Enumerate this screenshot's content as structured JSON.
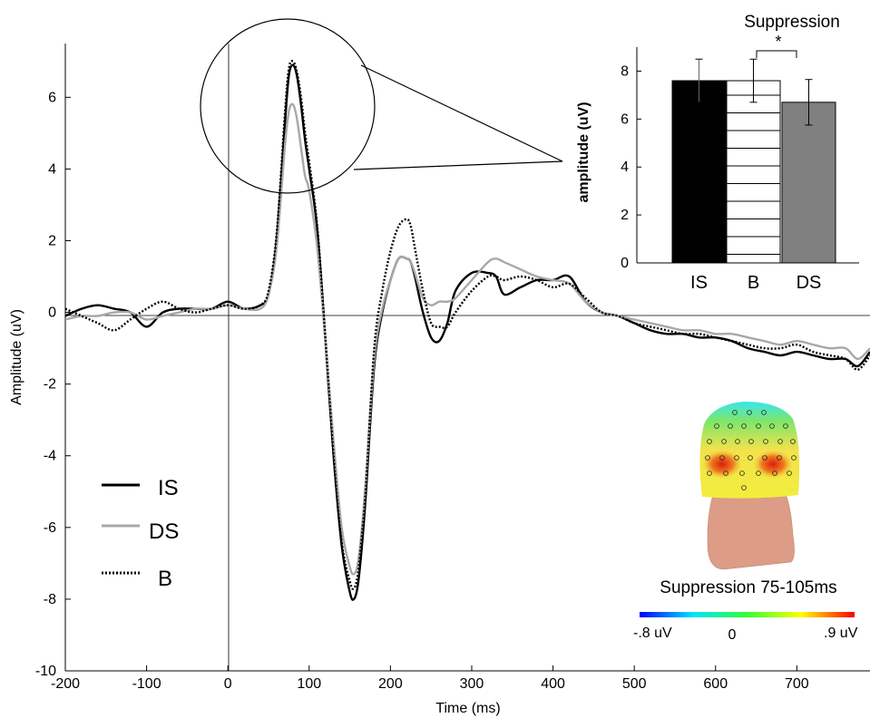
{
  "chart_data": [
    {
      "type": "line",
      "xlabel": "Time (ms)",
      "ylabel": "Amplitude (uV)",
      "xlim": [
        -200,
        790
      ],
      "ylim": [
        -10,
        7.5
      ],
      "xticks": [
        -200,
        -100,
        0,
        100,
        200,
        300,
        400,
        500,
        600,
        700
      ],
      "yticks": [
        -10,
        -8,
        -6,
        -4,
        -2,
        0,
        2,
        4,
        6
      ],
      "x_tick_labels": [
        "-200",
        "-100",
        "0",
        "100",
        "200",
        "300",
        "400",
        "500",
        "600",
        "700"
      ],
      "y_tick_labels": [
        "-10",
        "-8",
        "-6",
        "-4",
        "-2",
        "0",
        "2",
        "4",
        "6"
      ],
      "grid": false,
      "legend_position": "bottom-left",
      "x": [
        -200,
        -180,
        -160,
        -140,
        -120,
        -100,
        -80,
        -60,
        -40,
        -20,
        0,
        20,
        40,
        50,
        60,
        70,
        75,
        80,
        85,
        90,
        95,
        100,
        110,
        120,
        130,
        140,
        150,
        155,
        160,
        165,
        170,
        180,
        190,
        200,
        210,
        220,
        225,
        230,
        240,
        250,
        260,
        270,
        280,
        300,
        320,
        330,
        340,
        360,
        380,
        400,
        420,
        440,
        460,
        480,
        500,
        520,
        540,
        560,
        580,
        600,
        620,
        640,
        660,
        680,
        700,
        720,
        740,
        760,
        775,
        790
      ],
      "series": [
        {
          "name": "IS",
          "color": "#000000",
          "style": "solid",
          "values": [
            -0.1,
            0.1,
            0.2,
            0.1,
            0.0,
            -0.4,
            0.0,
            0.1,
            0.1,
            0.1,
            0.3,
            0.1,
            0.2,
            0.5,
            2.0,
            5.2,
            6.6,
            6.9,
            6.6,
            5.8,
            4.8,
            4.0,
            2.3,
            -0.8,
            -4.0,
            -6.5,
            -7.8,
            -8.0,
            -7.6,
            -6.5,
            -5.0,
            -1.5,
            0.0,
            0.9,
            1.5,
            1.5,
            1.4,
            1.0,
            0.0,
            -0.7,
            -0.8,
            -0.3,
            0.6,
            1.1,
            1.1,
            1.0,
            0.5,
            0.7,
            0.9,
            0.9,
            1.0,
            0.3,
            0.0,
            -0.1,
            -0.3,
            -0.5,
            -0.6,
            -0.6,
            -0.7,
            -0.7,
            -0.8,
            -1.0,
            -1.1,
            -1.2,
            -1.1,
            -1.2,
            -1.3,
            -1.3,
            -1.5,
            -1.1
          ]
        },
        {
          "name": "DS",
          "color": "#a8a8a8",
          "style": "solid",
          "values": [
            -0.2,
            -0.1,
            -0.1,
            0.0,
            0.0,
            -0.2,
            -0.1,
            0.0,
            0.1,
            0.1,
            0.2,
            0.1,
            0.1,
            0.5,
            1.8,
            4.6,
            5.6,
            5.8,
            5.4,
            4.6,
            3.8,
            3.4,
            1.8,
            -0.8,
            -3.6,
            -6.0,
            -7.1,
            -7.3,
            -7.0,
            -6.0,
            -4.6,
            -1.3,
            0.1,
            0.9,
            1.5,
            1.5,
            1.4,
            1.1,
            0.4,
            0.2,
            0.3,
            0.3,
            0.4,
            0.9,
            1.4,
            1.5,
            1.4,
            1.2,
            1.0,
            0.9,
            0.8,
            0.3,
            0.0,
            -0.1,
            -0.2,
            -0.3,
            -0.4,
            -0.5,
            -0.5,
            -0.6,
            -0.6,
            -0.7,
            -0.8,
            -0.9,
            -0.8,
            -0.9,
            -1.0,
            -1.0,
            -1.3,
            -1.0
          ]
        },
        {
          "name": "B",
          "color": "#000000",
          "style": "dotted",
          "values": [
            0.1,
            -0.1,
            -0.3,
            -0.5,
            -0.2,
            0.1,
            0.3,
            0.1,
            0.0,
            0.1,
            0.2,
            0.1,
            0.2,
            0.6,
            2.2,
            5.5,
            6.8,
            7.0,
            6.7,
            6.0,
            5.0,
            4.2,
            2.4,
            -0.7,
            -4.0,
            -6.4,
            -7.5,
            -7.7,
            -7.3,
            -6.2,
            -4.8,
            -1.0,
            0.6,
            1.7,
            2.4,
            2.6,
            2.4,
            1.8,
            0.6,
            -0.3,
            -0.4,
            -0.4,
            0.0,
            0.6,
            1.0,
            1.0,
            0.9,
            1.0,
            0.9,
            0.7,
            0.8,
            0.4,
            0.0,
            -0.1,
            -0.3,
            -0.4,
            -0.5,
            -0.6,
            -0.6,
            -0.7,
            -0.8,
            -0.9,
            -1.0,
            -1.0,
            -0.9,
            -1.1,
            -1.2,
            -1.3,
            -1.6,
            -1.2
          ]
        }
      ]
    },
    {
      "type": "bar",
      "title": "Suppression",
      "ylabel": "amplitude (uV)",
      "categories": [
        "IS",
        "B",
        "DS"
      ],
      "values": [
        7.6,
        7.6,
        6.7
      ],
      "errors": [
        0.9,
        0.9,
        0.95
      ],
      "ylim": [
        0,
        9
      ],
      "yticks": [
        0,
        2,
        4,
        6,
        8
      ],
      "y_tick_labels": [
        "0",
        "2",
        "4",
        "6",
        "8"
      ],
      "bar_colors": [
        "#000000",
        "#ffffff",
        "#808080"
      ],
      "bar_patterns": [
        "solid",
        "horizontal-lines",
        "solid"
      ],
      "significance": {
        "between": [
          "B",
          "DS"
        ],
        "label": "*"
      }
    }
  ],
  "topomap": {
    "caption": "Suppression 75-105ms",
    "colorbar_min_label": "-.8 uV",
    "colorbar_mid_label": "0",
    "colorbar_max_label": ".9 uV",
    "colormap": [
      "#0000ff",
      "#00e5ff",
      "#33ff33",
      "#ffff00",
      "#ff0000"
    ]
  }
}
